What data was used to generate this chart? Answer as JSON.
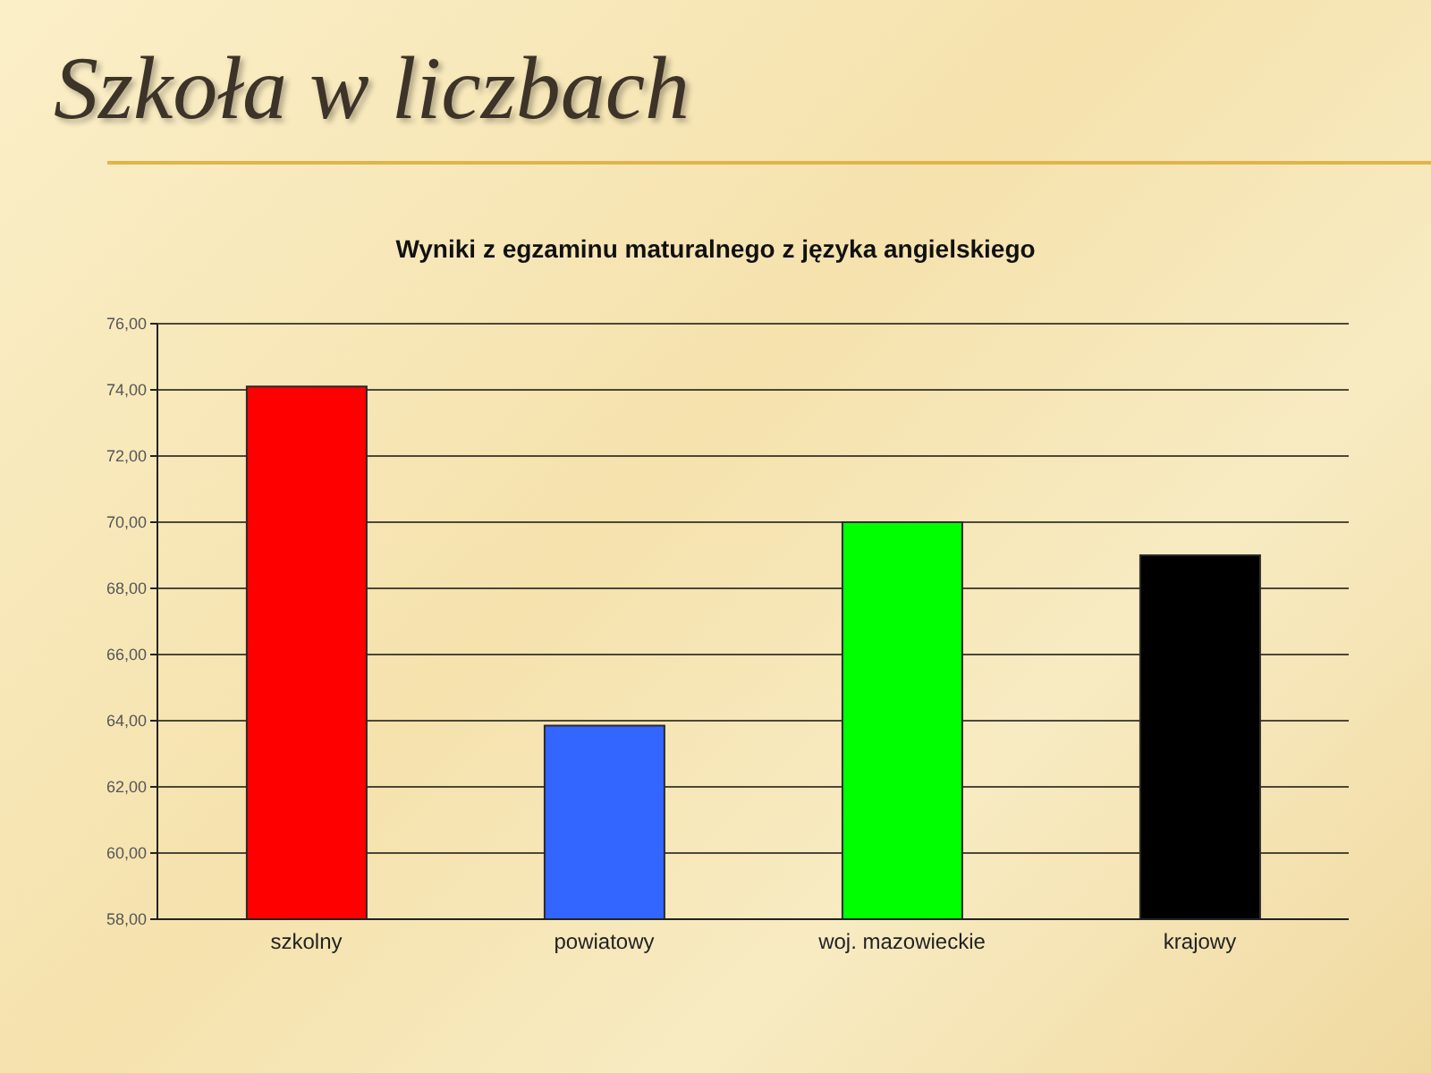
{
  "chart_data": {
    "type": "bar",
    "title": "Szkoła w liczbach",
    "subtitle": "Wyniki z egzaminu maturalnego z języka angielskiego",
    "categories": [
      "szkolny",
      "powiatowy",
      "woj. mazowieckie",
      "krajowy"
    ],
    "values": [
      74.1,
      63.85,
      70.0,
      69.0
    ],
    "colors": [
      "#ff0000",
      "#3366ff",
      "#00ff00",
      "#000000"
    ],
    "ylim": [
      58,
      76
    ],
    "yticks": [
      {
        "value": 58,
        "label": "58,00"
      },
      {
        "value": 60,
        "label": "60,00"
      },
      {
        "value": 62,
        "label": "62,00"
      },
      {
        "value": 64,
        "label": "64,00"
      },
      {
        "value": 66,
        "label": "66,00"
      },
      {
        "value": 68,
        "label": "68,00"
      },
      {
        "value": 70,
        "label": "70,00"
      },
      {
        "value": 72,
        "label": "72,00"
      },
      {
        "value": 74,
        "label": "74,00"
      },
      {
        "value": 76,
        "label": "76,00"
      }
    ],
    "grid": "y"
  }
}
